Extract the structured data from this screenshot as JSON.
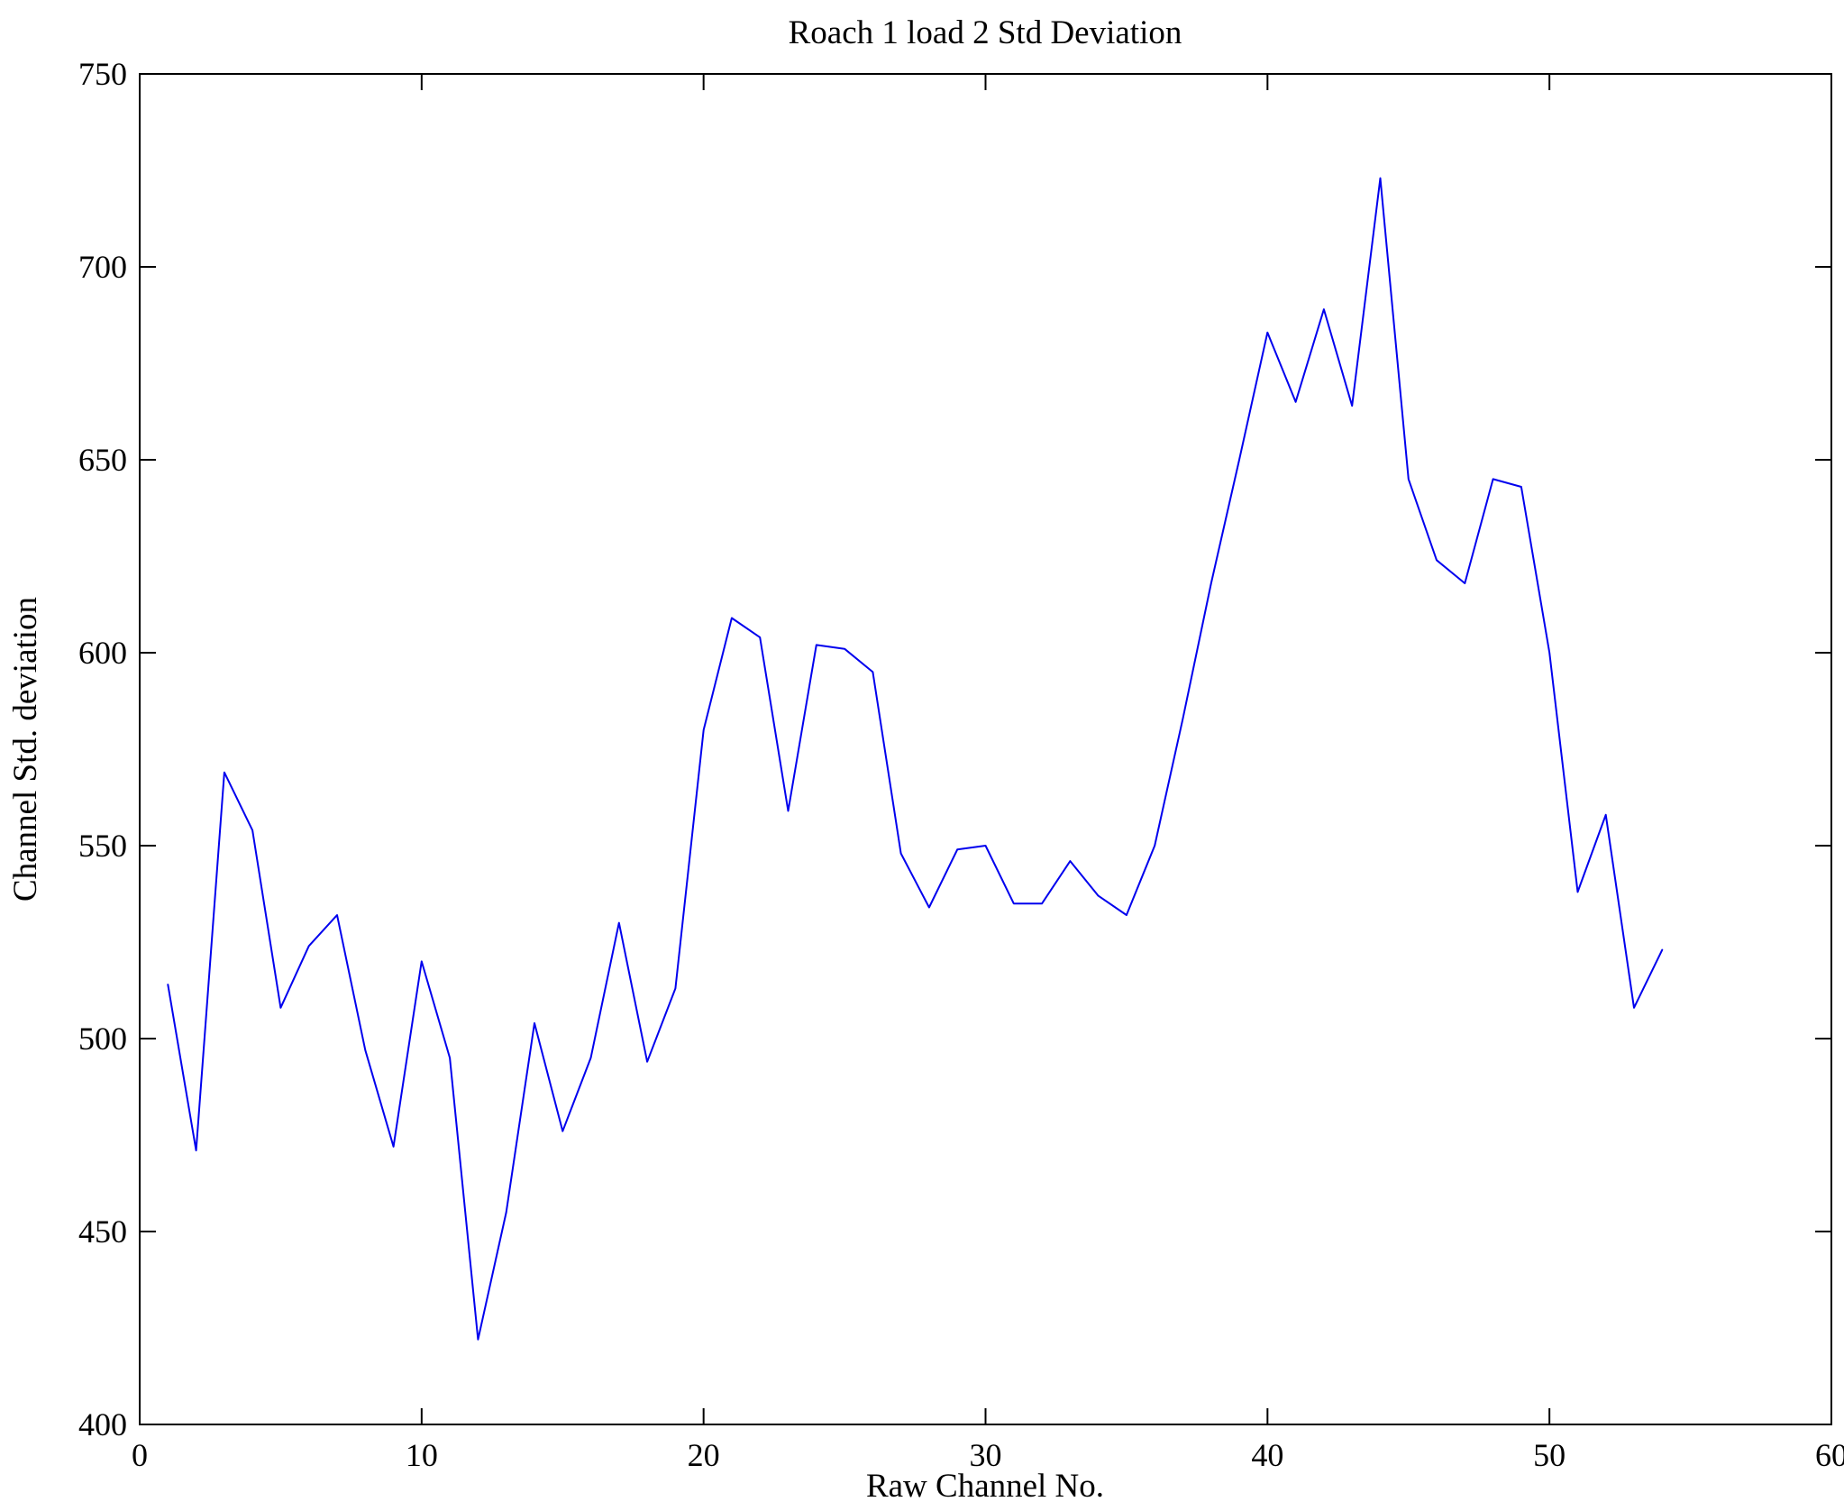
{
  "figure": {
    "background": "#ffffff"
  },
  "chart_data": {
    "type": "line",
    "title": "Roach 1 load 2 Std Deviation",
    "xlabel": "Raw Channel No.",
    "ylabel": "Channel Std. deviation",
    "xlim": [
      0,
      60
    ],
    "ylim": [
      400,
      750
    ],
    "x_ticks": [
      0,
      10,
      20,
      30,
      40,
      50,
      60
    ],
    "y_ticks": [
      400,
      450,
      500,
      550,
      600,
      650,
      700,
      750
    ],
    "grid": false,
    "legend": "none",
    "line_color": "#0000ee",
    "axis_color": "#000000",
    "x": [
      1,
      2,
      3,
      4,
      5,
      6,
      7,
      8,
      9,
      10,
      11,
      12,
      13,
      14,
      15,
      16,
      17,
      18,
      19,
      20,
      21,
      22,
      23,
      24,
      25,
      26,
      27,
      28,
      29,
      30,
      31,
      32,
      33,
      34,
      35,
      36,
      37,
      38,
      39,
      40,
      41,
      42,
      43,
      44,
      45,
      46,
      47,
      48,
      49,
      50,
      51,
      52,
      53,
      54
    ],
    "y": [
      514,
      471,
      569,
      554,
      508,
      524,
      532,
      497,
      472,
      520,
      495,
      422,
      455,
      504,
      476,
      495,
      530,
      494,
      513,
      580,
      609,
      604,
      559,
      602,
      601,
      595,
      548,
      534,
      549,
      550,
      535,
      535,
      546,
      537,
      532,
      550,
      583,
      618,
      650,
      683,
      665,
      689,
      664,
      723,
      645,
      624,
      618,
      645,
      643,
      600,
      538,
      558,
      508,
      523
    ]
  }
}
